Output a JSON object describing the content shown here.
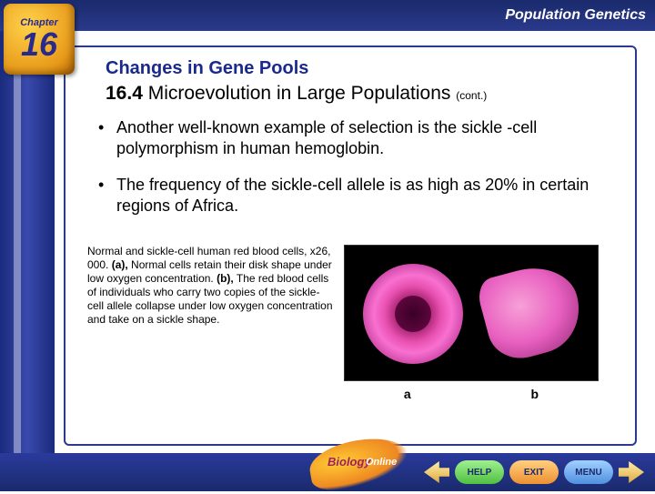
{
  "header": {
    "chapter_label": "Chapter",
    "chapter_number": "16",
    "topic": "Population Genetics"
  },
  "content": {
    "section_title": "Changes in Gene Pools",
    "subsection_number": "16.4",
    "subsection_title": "Microevolution in Large Populations",
    "cont": "(cont.)",
    "bullets": [
      "Another well-known example of selection is the sickle -cell polymorphism in human hemoglobin.",
      "The frequency of the sickle-cell allele is as high as 20% in certain regions of Africa."
    ],
    "caption_intro": "Normal and sickle-cell human red blood cells, x26, 000. ",
    "caption_a_label": "(a),",
    "caption_a_text": " Normal cells retain their disk shape under low oxygen concentration. ",
    "caption_b_label": "(b),",
    "caption_b_text": " The red blood cells of individuals who carry two copies of the sickle-cell allele collapse under low oxygen concentration and take on a sickle shape.",
    "figure_label_a": "a",
    "figure_label_b": "b"
  },
  "footer": {
    "logo_text1": "Biology",
    "logo_text2": "Online",
    "help": "HELP",
    "exit": "EXIT",
    "menu": "MENU"
  },
  "styling": {
    "header_bg": "#1a2a6c",
    "badge_gradient": [
      "#ffd24a",
      "#e89a1a",
      "#b86800"
    ],
    "title_color": "#1a2a8c",
    "body_font_size": 18,
    "title_font_size": 20,
    "caption_font_size": 12,
    "cell_colors": {
      "magenta": "#e850b0",
      "dark": "#4a0030"
    }
  }
}
